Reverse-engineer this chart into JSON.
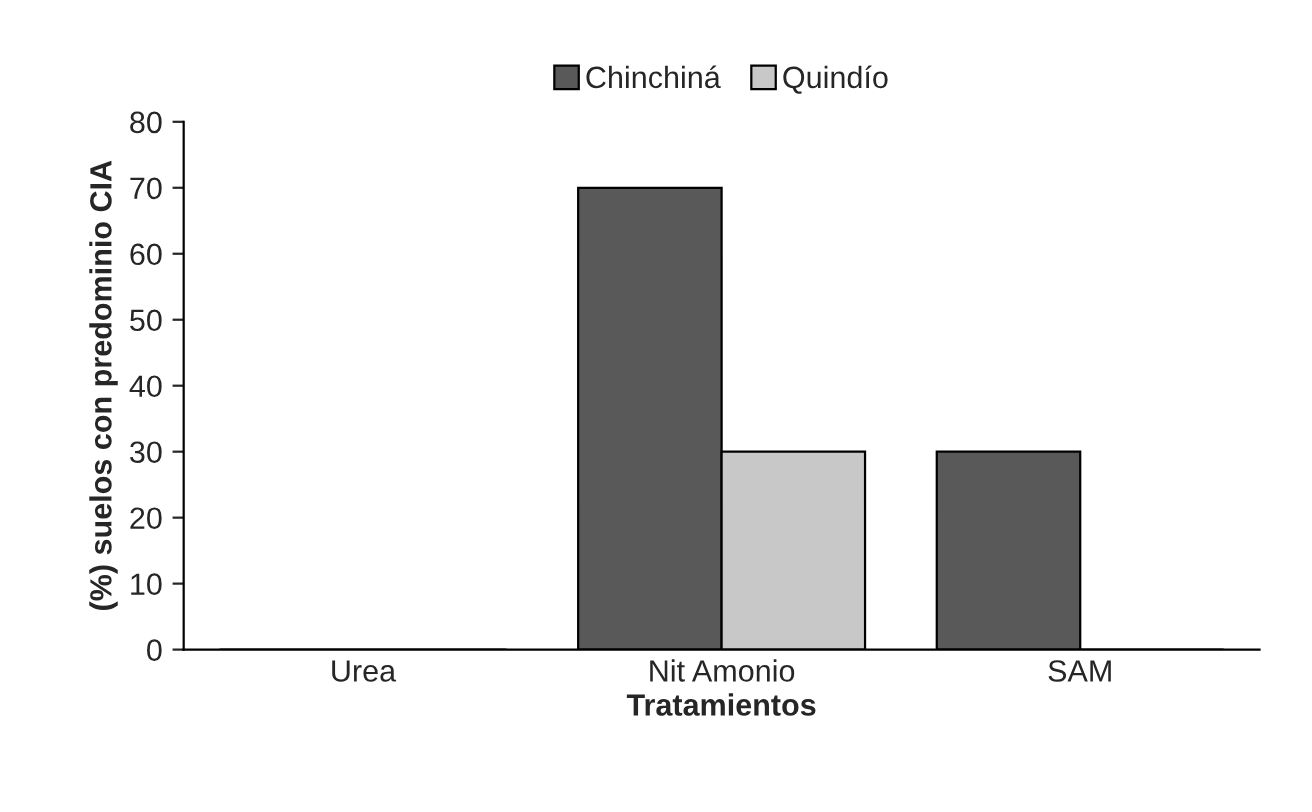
{
  "chart_data": {
    "type": "bar",
    "xlabel": "Tratamientos",
    "ylabel": "(%) suelos con predominio CIA",
    "categories": [
      "Urea",
      "Nit Amonio",
      "SAM"
    ],
    "series": [
      {
        "name": "Chinchiná",
        "color": "#595959",
        "values": [
          0,
          70,
          30
        ]
      },
      {
        "name": "Quindío",
        "color": "#c8c8c8",
        "values": [
          0,
          30,
          0
        ]
      }
    ],
    "ylim": [
      0,
      80
    ],
    "yticks": [
      0,
      10,
      20,
      30,
      40,
      50,
      60,
      70,
      80
    ],
    "grid": false,
    "legend": "top"
  }
}
